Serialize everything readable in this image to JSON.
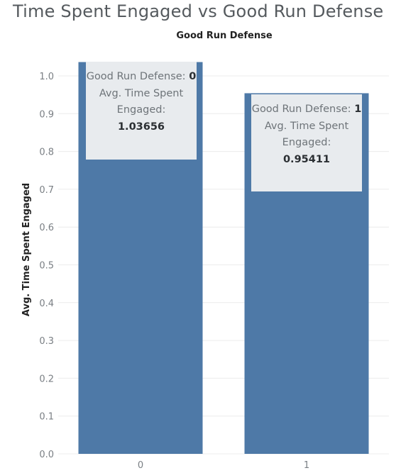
{
  "chart_data": {
    "type": "bar",
    "title": "Time Spent Engaged vs Good Run Defense",
    "column_header": "Good Run Defense",
    "xlabel": "",
    "ylabel": "Avg. Time Spent Engaged",
    "categories": [
      "0",
      "1"
    ],
    "values": [
      1.03656,
      0.95411
    ],
    "ylim": [
      0,
      1.08
    ],
    "yticks": [
      "0.0",
      "0.1",
      "0.2",
      "0.3",
      "0.4",
      "0.5",
      "0.6",
      "0.7",
      "0.8",
      "0.9",
      "1.0"
    ],
    "grid": true,
    "bar_color": "#4e79a7",
    "tooltips": [
      {
        "field_label": "Good Run Defense:",
        "field_value": "0",
        "measure_label": "Avg. Time Spent Engaged:",
        "measure_value": "1.03656"
      },
      {
        "field_label": "Good Run Defense:",
        "field_value": "1",
        "measure_label": "Avg. Time Spent Engaged:",
        "measure_value": "0.95411"
      }
    ]
  }
}
